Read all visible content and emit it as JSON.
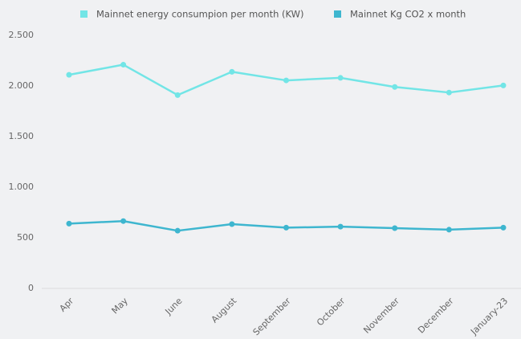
{
  "chart_data": {
    "type": "line",
    "categories": [
      "Apr",
      "May",
      "June",
      "August",
      "September",
      "October",
      "November",
      "December",
      "January-23"
    ],
    "series": [
      {
        "name": "Mainnet energy consumpion per month (KW)",
        "color": "#72e5e6",
        "values": [
          2110,
          2210,
          1910,
          2140,
          2055,
          2080,
          1990,
          1935,
          2005
        ]
      },
      {
        "name": "Mainnet Kg CO2 x month",
        "color": "#3eb6cf",
        "values": [
          640,
          665,
          570,
          635,
          600,
          610,
          595,
          580,
          600
        ]
      }
    ],
    "ylim": [
      0,
      2500
    ],
    "yticks": [
      0,
      500,
      {
        "value": 1000,
        "label": "1.000"
      },
      {
        "value": 1500,
        "label": "1.500"
      },
      {
        "value": 2000,
        "label": "2.000"
      },
      {
        "value": 2500,
        "label": "2.500"
      }
    ],
    "legend": "top"
  }
}
